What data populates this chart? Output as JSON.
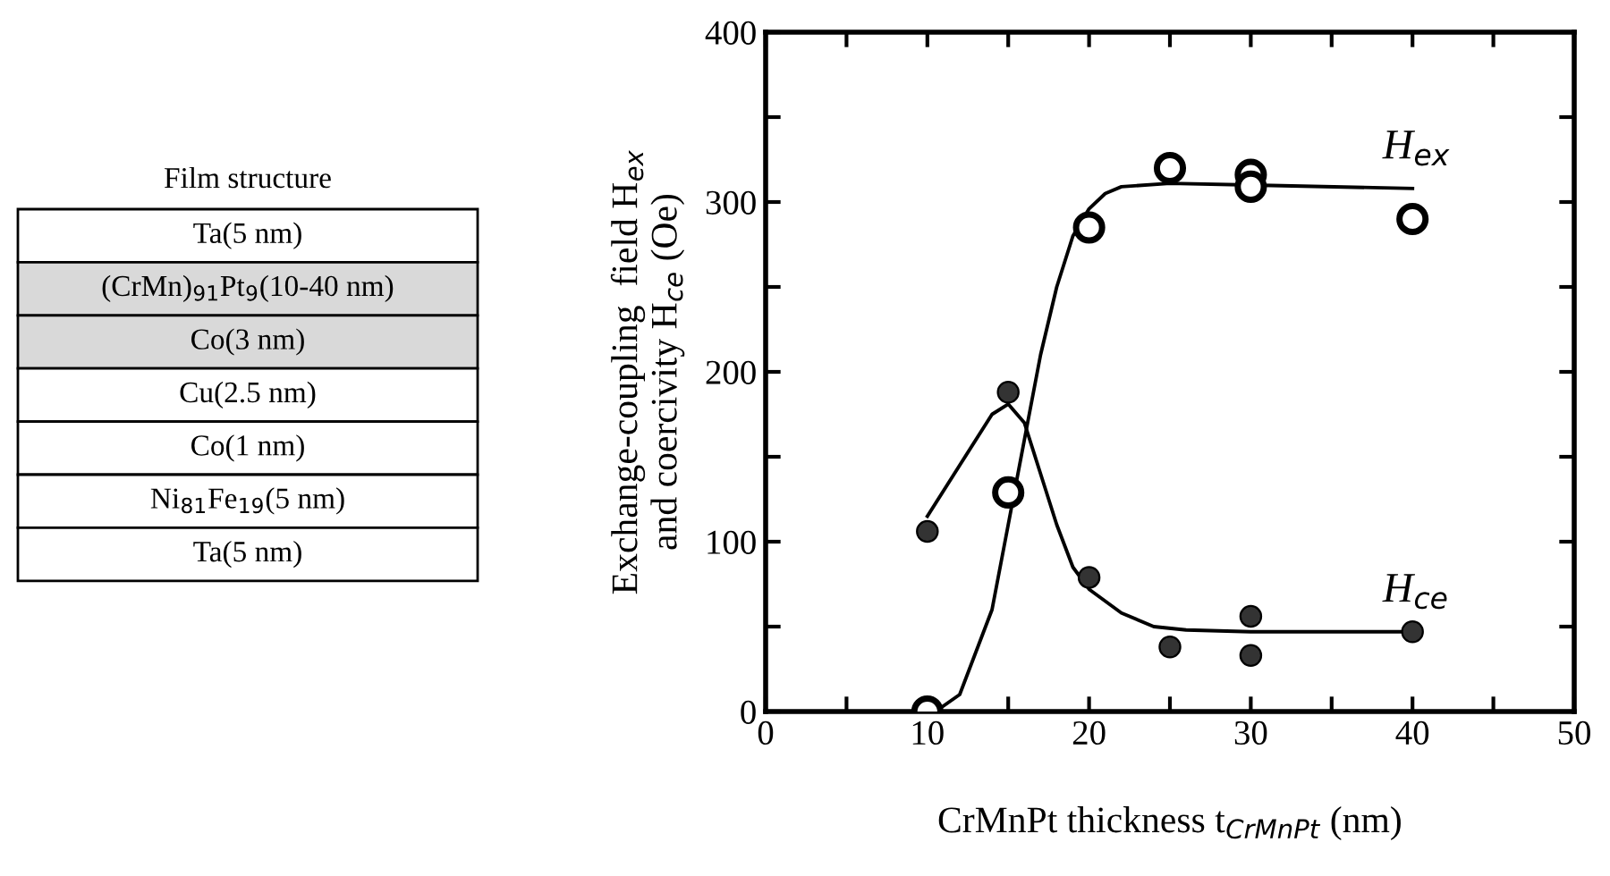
{
  "chart_data": {
    "type": "scatter",
    "xlabel": "CrMnPt thickness t$_{CrMnPt}$ (nm)",
    "ylabel": "Exchange-coupling  field H$_{ex}$\nand coercivity H$_{ce}$ (Oe)",
    "xlim": [
      0,
      50
    ],
    "ylim": [
      0,
      400
    ],
    "xticks": [
      0,
      {
        "value": 5,
        "label": null
      },
      10,
      {
        "value": 15,
        "label": null
      },
      20,
      {
        "value": 25,
        "label": null
      },
      30,
      {
        "value": 35,
        "label": null
      },
      40,
      {
        "value": 45,
        "label": null
      },
      50
    ],
    "yticks": [
      0,
      {
        "value": 50,
        "label": null
      },
      100,
      {
        "value": 150,
        "label": null
      },
      200,
      {
        "value": 250,
        "label": null
      },
      300,
      {
        "value": 350,
        "label": null
      },
      400
    ],
    "grid": false,
    "legend": false,
    "series": [
      {
        "type": "line",
        "name": "H$_{ex}$",
        "color": "#000000",
        "marker": "none",
        "line_style": "solid",
        "x": [
          10.5,
          12,
          14,
          15,
          16,
          17,
          18,
          19,
          20,
          21,
          22,
          25,
          30,
          40
        ],
        "values": [
          0,
          10,
          60,
          110,
          160,
          210,
          250,
          280,
          296,
          305,
          309,
          311,
          310,
          308
        ]
      },
      {
        "type": "line",
        "name": "H$_{ce}$",
        "color": "#000000",
        "marker": "none",
        "line_style": "solid",
        "x": [
          10,
          12,
          14,
          15,
          16,
          17,
          18,
          19,
          20,
          22,
          24,
          26,
          30,
          40
        ],
        "values": [
          115,
          145,
          175,
          181,
          170,
          140,
          110,
          85,
          72,
          58,
          50,
          48,
          47,
          47
        ]
      },
      {
        "color": "#ffffff",
        "marker": "circle",
        "x": [
          10,
          15,
          20,
          25,
          30,
          30,
          40
        ],
        "values": [
          0,
          129,
          285,
          320,
          316,
          309,
          290
        ]
      },
      {
        "color": "#333333",
        "marker": "circle",
        "x": [
          10,
          15,
          20,
          25,
          30,
          30,
          40
        ],
        "values": [
          106,
          188,
          79,
          38,
          56,
          33,
          47
        ]
      }
    ],
    "annotations": [
      "Film structure",
      "Ta(5 nm)",
      "(CrMn)$_{91}$Pt$_{9}$(10-40 nm)",
      "Co(3 nm)",
      "Cu(2.5 nm)",
      "Co(1 nm)",
      "Ni$_{81}$Fe$_{19}$(5 nm)",
      "Ta(5 nm)"
    ]
  }
}
